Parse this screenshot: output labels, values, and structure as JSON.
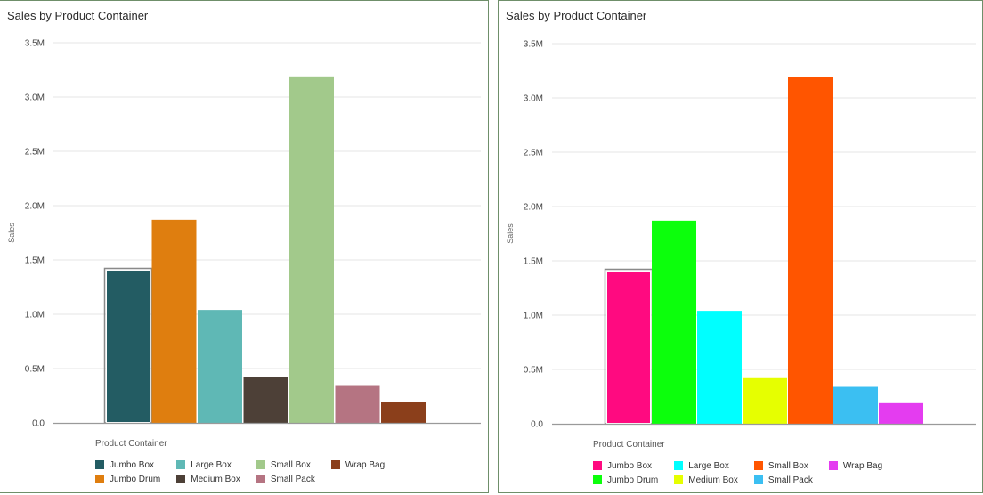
{
  "chart_data": [
    {
      "type": "bar",
      "title": "Sales by Product Container",
      "ylabel": "Sales",
      "legend_title": "Product Container",
      "ylim": [
        0,
        3500000
      ],
      "yticks": [
        "0.0",
        "0.5M",
        "1.0M",
        "1.5M",
        "2.0M",
        "2.5M",
        "3.0M",
        "3.5M"
      ],
      "categories": [
        "Jumbo Box",
        "Jumbo Drum",
        "Large Box",
        "Medium Box",
        "Small Box",
        "Small Pack",
        "Wrap Bag"
      ],
      "values": [
        1410000,
        1870000,
        1040000,
        420000,
        3190000,
        340000,
        190000
      ],
      "colors": [
        "#235c63",
        "#df7e0f",
        "#5fb8b5",
        "#4d4037",
        "#a2c98b",
        "#b57482",
        "#8b3f1b"
      ],
      "legend_order": [
        "Jumbo Box",
        "Jumbo Drum",
        "Large Box",
        "Medium Box",
        "Small Box",
        "Small Pack",
        "Wrap Bag"
      ],
      "selected": "Jumbo Box",
      "legend": "bottom-left",
      "grid": true
    },
    {
      "type": "bar",
      "title": "Sales by Product Container",
      "ylabel": "Sales",
      "legend_title": "Product Container",
      "ylim": [
        0,
        3500000
      ],
      "yticks": [
        "0.0",
        "0.5M",
        "1.0M",
        "1.5M",
        "2.0M",
        "2.5M",
        "3.0M",
        "3.5M"
      ],
      "categories": [
        "Jumbo Box",
        "Jumbo Drum",
        "Large Box",
        "Medium Box",
        "Small Box",
        "Small Pack",
        "Wrap Bag"
      ],
      "values": [
        1410000,
        1870000,
        1040000,
        420000,
        3190000,
        340000,
        190000
      ],
      "colors": [
        "#ff0a80",
        "#0cff0c",
        "#00ffff",
        "#e6ff00",
        "#ff5500",
        "#3bbff2",
        "#e43cf0"
      ],
      "legend_order": [
        "Jumbo Box",
        "Jumbo Drum",
        "Large Box",
        "Medium Box",
        "Small Box",
        "Small Pack",
        "Wrap Bag"
      ],
      "selected": "Jumbo Box",
      "legend": "bottom-left",
      "grid": true
    }
  ]
}
